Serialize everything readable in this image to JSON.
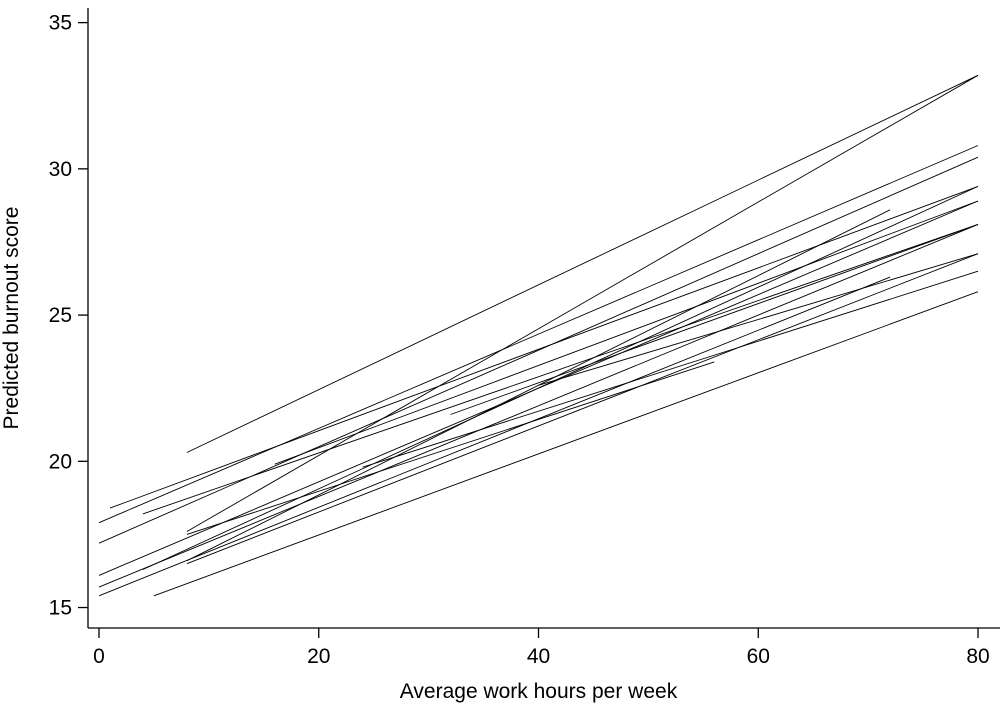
{
  "chart_data": {
    "type": "line",
    "title": "",
    "xlabel": "Average work hours per week",
    "ylabel": "Predicted burnout score",
    "xlim": [
      -1,
      82
    ],
    "ylim": [
      14.3,
      35.5
    ],
    "xticks": [
      0,
      20,
      40,
      60,
      80
    ],
    "yticks": [
      15,
      20,
      25,
      30,
      35
    ],
    "grid": false,
    "legend": "none",
    "line_color": "#000000",
    "series": [
      {
        "x": [
          8,
          80
        ],
        "y": [
          20.3,
          33.2
        ]
      },
      {
        "x": [
          8,
          80
        ],
        "y": [
          17.6,
          33.2
        ]
      },
      {
        "x": [
          0,
          80
        ],
        "y": [
          17.9,
          30.8
        ]
      },
      {
        "x": [
          1,
          80
        ],
        "y": [
          18.4,
          29.4
        ]
      },
      {
        "x": [
          0,
          80
        ],
        "y": [
          17.2,
          30.4
        ]
      },
      {
        "x": [
          8,
          72
        ],
        "y": [
          16.6,
          28.6
        ]
      },
      {
        "x": [
          4,
          80
        ],
        "y": [
          16.3,
          29.4
        ]
      },
      {
        "x": [
          0,
          80
        ],
        "y": [
          16.1,
          28.9
        ]
      },
      {
        "x": [
          4,
          80
        ],
        "y": [
          18.2,
          28.1
        ]
      },
      {
        "x": [
          16,
          80
        ],
        "y": [
          19.9,
          28.9
        ]
      },
      {
        "x": [
          0,
          80
        ],
        "y": [
          15.7,
          28.1
        ]
      },
      {
        "x": [
          8,
          80
        ],
        "y": [
          16.5,
          27.1
        ]
      },
      {
        "x": [
          0,
          72
        ],
        "y": [
          15.4,
          26.3
        ]
      },
      {
        "x": [
          24,
          80
        ],
        "y": [
          19.8,
          26.5
        ]
      },
      {
        "x": [
          8,
          56
        ],
        "y": [
          17.5,
          23.4
        ]
      },
      {
        "x": [
          5,
          80
        ],
        "y": [
          15.4,
          25.8
        ]
      },
      {
        "x": [
          40,
          80
        ],
        "y": [
          22.6,
          27.1
        ]
      },
      {
        "x": [
          32,
          80
        ],
        "y": [
          21.6,
          28.1
        ]
      }
    ]
  }
}
